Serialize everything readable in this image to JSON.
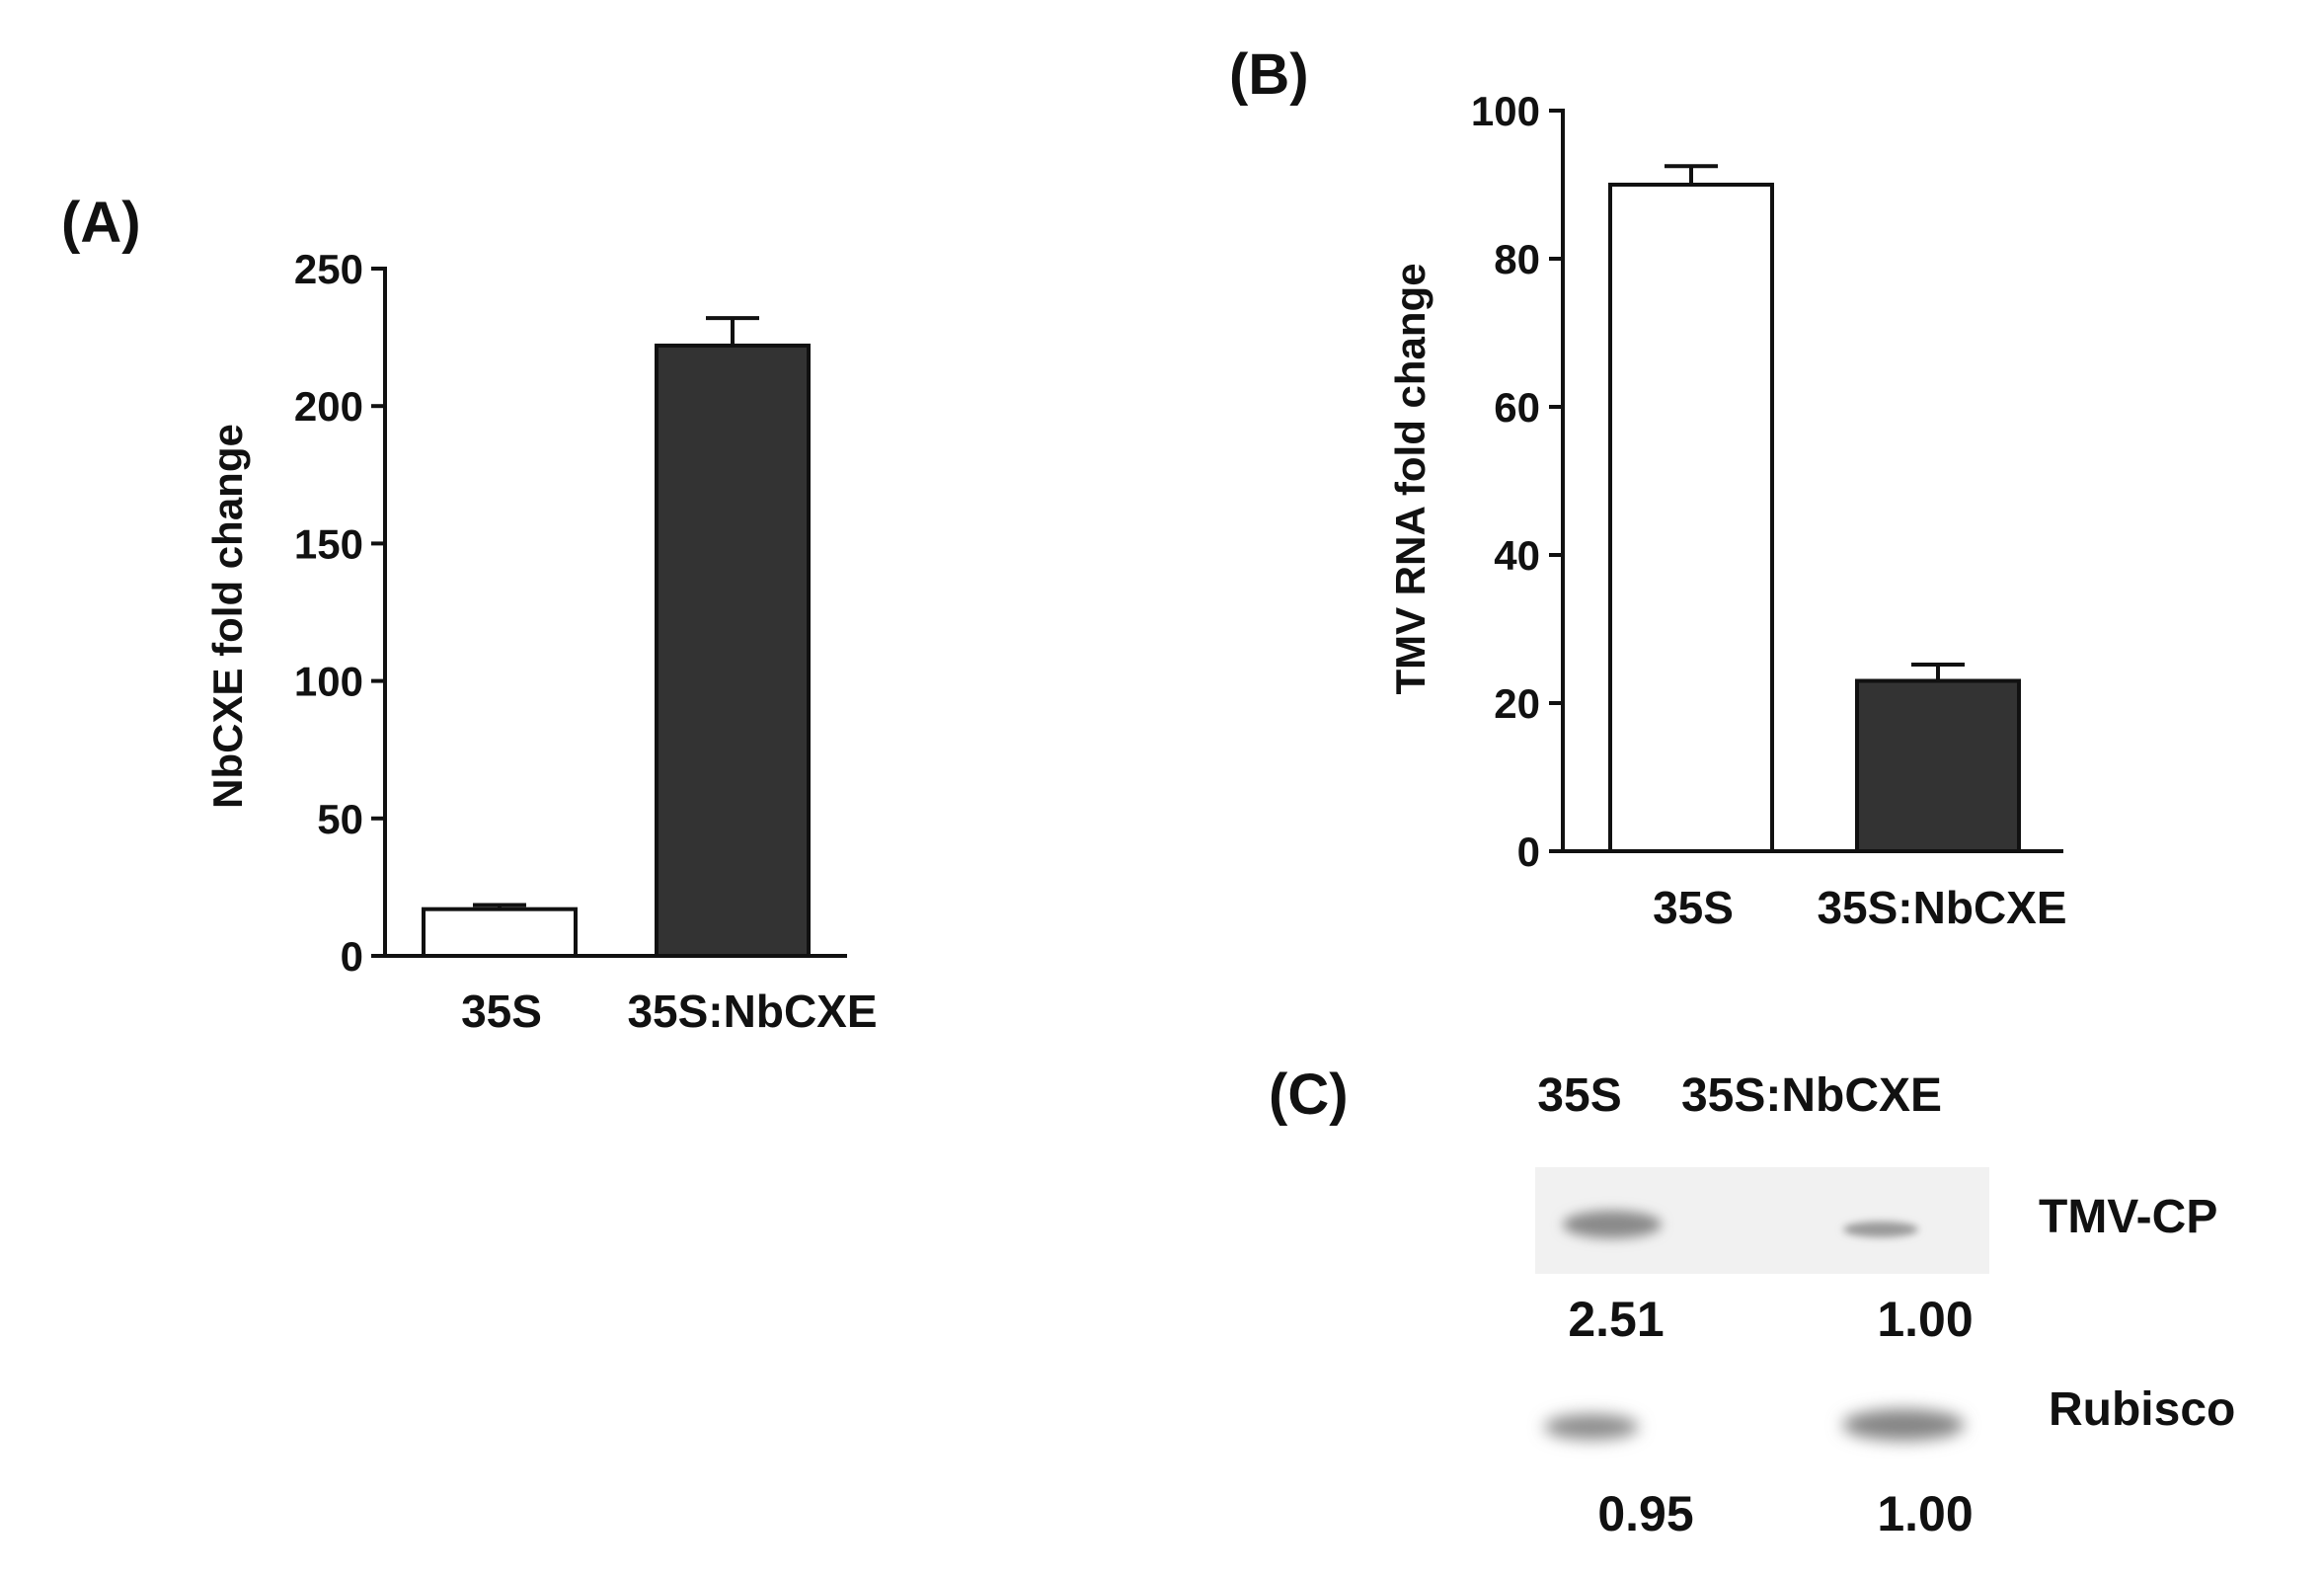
{
  "panels": {
    "A": {
      "label": "(A)"
    },
    "B": {
      "label": "(B)"
    },
    "C": {
      "label": "(C)"
    }
  },
  "chart_data": [
    {
      "id": "A",
      "type": "bar",
      "title": "",
      "xlabel": "",
      "ylabel": "NbCXE fold change",
      "ylim": [
        0,
        250
      ],
      "yticks": [
        0,
        50,
        100,
        150,
        200,
        250
      ],
      "categories": [
        "35S",
        "35S:NbCXE"
      ],
      "values": [
        17,
        222
      ],
      "errors": [
        1.5,
        10
      ],
      "colors": [
        "#ffffff",
        "#333333"
      ]
    },
    {
      "id": "B",
      "type": "bar",
      "title": "",
      "xlabel": "",
      "ylabel": "TMV RNA fold change",
      "ylim": [
        0,
        100
      ],
      "yticks": [
        0,
        20,
        40,
        60,
        80,
        100
      ],
      "categories": [
        "35S",
        "35S:NbCXE"
      ],
      "values": [
        90,
        23
      ],
      "errors": [
        2.5,
        2.2
      ],
      "colors": [
        "#ffffff",
        "#333333"
      ]
    }
  ],
  "blot": {
    "lanes": [
      "35S",
      "35S:NbCXE"
    ],
    "rows": [
      {
        "name": "TMV-CP",
        "values": [
          "2.51",
          "1.00"
        ]
      },
      {
        "name": "Rubisco",
        "values": [
          "0.95",
          "1.00"
        ]
      }
    ]
  }
}
